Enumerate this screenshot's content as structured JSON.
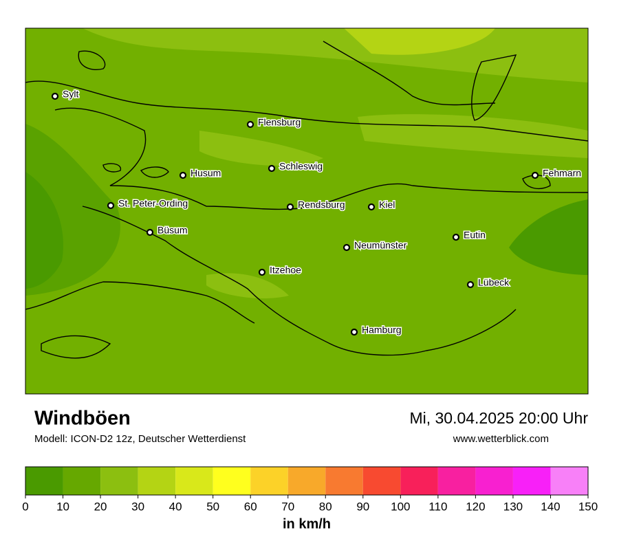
{
  "header": {
    "title": "Windböen",
    "model": "Modell: ICON-D2 12z, Deutscher Wetterdienst",
    "datetime": "Mi, 30.04.2025 20:00 Uhr",
    "website": "www.wetterblick.com"
  },
  "map": {
    "cities": [
      {
        "name": "Sylt"
      },
      {
        "name": "Flensburg"
      },
      {
        "name": "Schleswig"
      },
      {
        "name": "Husum"
      },
      {
        "name": "St. Peter-Ording"
      },
      {
        "name": "Büsum"
      },
      {
        "name": "Rendsburg"
      },
      {
        "name": "Kiel"
      },
      {
        "name": "Fehmarn"
      },
      {
        "name": "Eutin"
      },
      {
        "name": "Neumünster"
      },
      {
        "name": "Itzehoe"
      },
      {
        "name": "Lübeck"
      },
      {
        "name": "Hamburg"
      }
    ]
  },
  "colorbar": {
    "ticks": [
      0,
      10,
      20,
      30,
      40,
      50,
      60,
      70,
      80,
      90,
      100,
      110,
      120,
      130,
      140,
      150
    ],
    "colors": [
      "#4a9a00",
      "#66a800",
      "#8cbf10",
      "#b4d414",
      "#d9e81a",
      "#ffff1e",
      "#fcd228",
      "#f8a92a",
      "#f87a30",
      "#f84a30",
      "#f8205a",
      "#f820a0",
      "#f820d0",
      "#f820f8",
      "#f880f8"
    ],
    "unit_label": "in km/h"
  }
}
